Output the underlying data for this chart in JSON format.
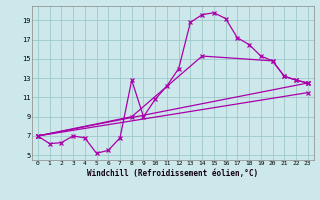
{
  "xlabel": "Windchill (Refroidissement éolien,°C)",
  "bg_color": "#cde8ea",
  "line_color": "#aa00aa",
  "grid_color": "#9ec8cc",
  "xlim": [
    -0.5,
    23.5
  ],
  "ylim": [
    4.5,
    20.5
  ],
  "xticks": [
    0,
    1,
    2,
    3,
    4,
    5,
    6,
    7,
    8,
    9,
    10,
    11,
    12,
    13,
    14,
    15,
    16,
    17,
    18,
    19,
    20,
    21,
    22,
    23
  ],
  "yticks": [
    5,
    7,
    9,
    11,
    13,
    15,
    17,
    19
  ],
  "curve_x": [
    0,
    1,
    2,
    3,
    4,
    5,
    6,
    7,
    8,
    9,
    10,
    11,
    12,
    13,
    14,
    15,
    16,
    17,
    18,
    19,
    20,
    21,
    22,
    23
  ],
  "curve_y": [
    7.0,
    6.2,
    6.3,
    7.0,
    6.8,
    5.2,
    5.5,
    6.8,
    12.8,
    9.0,
    10.8,
    12.2,
    14.0,
    18.8,
    19.6,
    19.8,
    19.2,
    17.2,
    16.5,
    15.3,
    14.8,
    13.2,
    12.8,
    12.5
  ],
  "line1_x": [
    0,
    23
  ],
  "line1_y": [
    7.0,
    11.5
  ],
  "line2_x": [
    0,
    23
  ],
  "line2_y": [
    7.0,
    12.5
  ],
  "line3_x": [
    0,
    8,
    14,
    20,
    21,
    22,
    23
  ],
  "line3_y": [
    7.0,
    9.0,
    15.3,
    14.8,
    13.2,
    12.8,
    12.5
  ]
}
